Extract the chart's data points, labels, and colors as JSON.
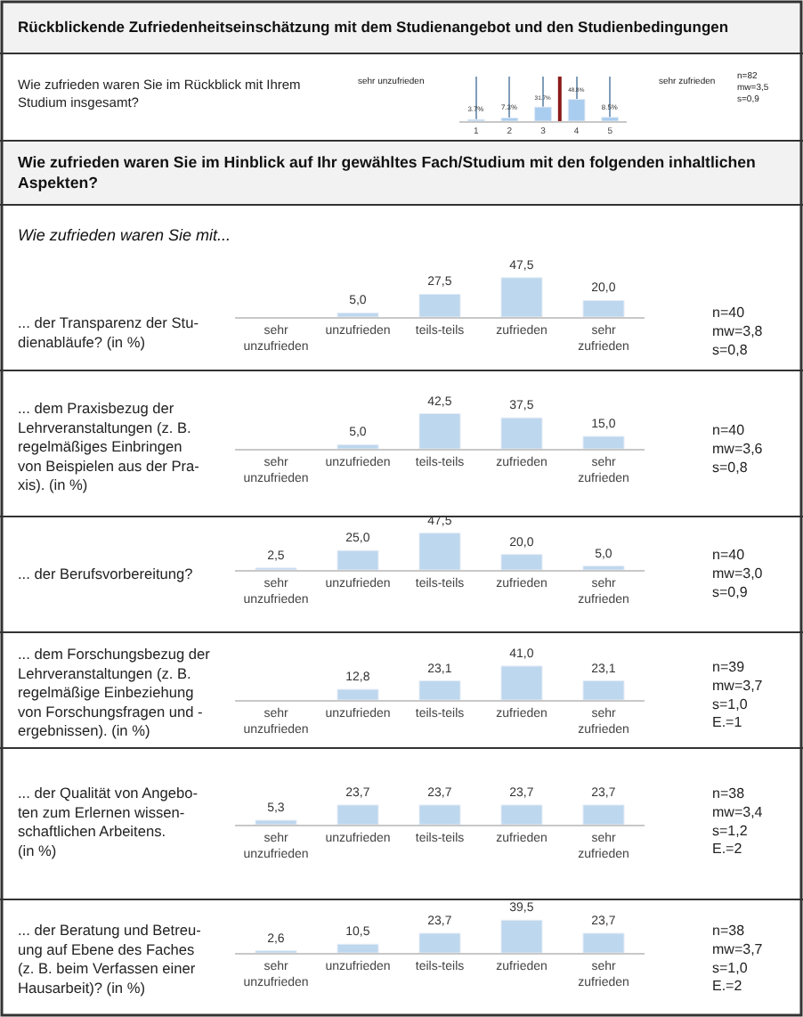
{
  "chart_data": [
    {
      "type": "bar",
      "title": "Rückblickende Zufriedenheitseinschätzung mit dem Studienangebot und den Studienbedingungen",
      "x": [
        1,
        2,
        3,
        4,
        5
      ],
      "values": [
        3.7,
        7.3,
        31.7,
        48.8,
        8.5
      ],
      "value_labels": [
        "3.7%",
        "7.3%",
        "31.7%",
        "48.8%",
        "8.5%"
      ],
      "color": "#a9cdef",
      "xlim": [
        0.5,
        5.5
      ],
      "xticks": [
        1,
        2,
        3,
        4,
        5
      ],
      "ylim": [
        0,
        100
      ],
      "tick_labels": "x",
      "grid": "x",
      "ref_lines": [
        {
          "axis": "x",
          "value": 3.5,
          "color": "#8b1a1a"
        }
      ],
      "annotations": [
        "Wie zufrieden waren Sie im Rückblick mit Ihrem\nStudium insgesamt?",
        "sehr unzufrieden",
        "sehr zufrieden",
        "n=82\nmw=3,5\ns=0,9"
      ]
    },
    {
      "type": "bar",
      "title": "Wie zufrieden waren Sie im Hinblick auf Ihr gewähltes Fach/Studium mit den folgenden inhaltlichen\nAspekten?",
      "subtitle": "Wie zufrieden waren Sie mit...",
      "categories": [
        "sehr\nunzufrieden",
        "unzufrieden",
        "teils-teils",
        "zufrieden",
        "sehr\nzufrieden"
      ],
      "values": [
        null,
        5.0,
        27.5,
        47.5,
        20.0
      ],
      "value_labels": [
        null,
        "5,0",
        "27,5",
        "47,5",
        "20,0"
      ],
      "color": "#bdd7ee",
      "tick_labels": "x",
      "annotations": [
        "... der Transparenz der Stu-\ndienabläufe? (in %)",
        "n=40\nmw=3,8\ns=0,8"
      ]
    },
    {
      "type": "bar",
      "categories": [
        "sehr\nunzufrieden",
        "unzufrieden",
        "teils-teils",
        "zufrieden",
        "sehr\nzufrieden"
      ],
      "values": [
        null,
        5.0,
        42.5,
        37.5,
        15.0
      ],
      "value_labels": [
        null,
        "5,0",
        "42,5",
        "37,5",
        "15,0"
      ],
      "color": "#bdd7ee",
      "tick_labels": "x",
      "annotations": [
        "... dem Praxisbezug der\nLehrveranstaltungen (z. B.\nregelmäßiges Einbringen\nvon Beispielen aus der Pra-\nxis). (in %)",
        "n=40\nmw=3,6\ns=0,8"
      ]
    },
    {
      "type": "bar",
      "categories": [
        "sehr\nunzufrieden",
        "unzufrieden",
        "teils-teils",
        "zufrieden",
        "sehr\nzufrieden"
      ],
      "values": [
        2.5,
        25.0,
        47.5,
        20.0,
        5.0
      ],
      "value_labels": [
        "2,5",
        "25,0",
        "47,5",
        "20,0",
        "5,0"
      ],
      "color": "#bdd7ee",
      "tick_labels": "x",
      "annotations": [
        "... der Berufsvorbereitung?",
        "n=40\nmw=3,0\ns=0,9"
      ]
    },
    {
      "type": "bar",
      "categories": [
        "sehr\nunzufrieden",
        "unzufrieden",
        "teils-teils",
        "zufrieden",
        "sehr\nzufrieden"
      ],
      "values": [
        null,
        12.8,
        23.1,
        41.0,
        23.1
      ],
      "value_labels": [
        null,
        "12,8",
        "23,1",
        "41,0",
        "23,1"
      ],
      "color": "#bdd7ee",
      "tick_labels": "x",
      "annotations": [
        "... dem Forschungsbezug der\nLehrveranstaltungen (z. B.\nregelmäßige Einbeziehung\nvon Forschungsfragen und -\nergebnissen). (in %)",
        "n=39\nmw=3,7\ns=1,0\nE.=1"
      ]
    },
    {
      "type": "bar",
      "categories": [
        "sehr\nunzufrieden",
        "unzufrieden",
        "teils-teils",
        "zufrieden",
        "sehr\nzufrieden"
      ],
      "values": [
        5.3,
        23.7,
        23.7,
        23.7,
        23.7
      ],
      "value_labels": [
        "5,3",
        "23,7",
        "23,7",
        "23,7",
        "23,7"
      ],
      "color": "#bdd7ee",
      "tick_labels": "x",
      "annotations": [
        "... der Qualität von Angebo-\nten zum Erlernen wissen-\nschaftlichen Arbeitens.\n(in %)",
        "n=38\nmw=3,4\ns=1,2\nE.=2"
      ]
    },
    {
      "type": "bar",
      "categories": [
        "sehr\nunzufrieden",
        "unzufrieden",
        "teils-teils",
        "zufrieden",
        "sehr\nzufrieden"
      ],
      "values": [
        2.6,
        10.5,
        23.7,
        39.5,
        23.7
      ],
      "value_labels": [
        "2,6",
        "10,5",
        "23,7",
        "39,5",
        "23,7"
      ],
      "color": "#bdd7ee",
      "tick_labels": "x",
      "annotations": [
        "... der Beratung und Betreu-\nung auf Ebene des Faches\n(z. B. beim Verfassen einer\nHausarbeit)? (in %)",
        "n=38\nmw=3,7\ns=1,0\nE.=2"
      ]
    }
  ]
}
